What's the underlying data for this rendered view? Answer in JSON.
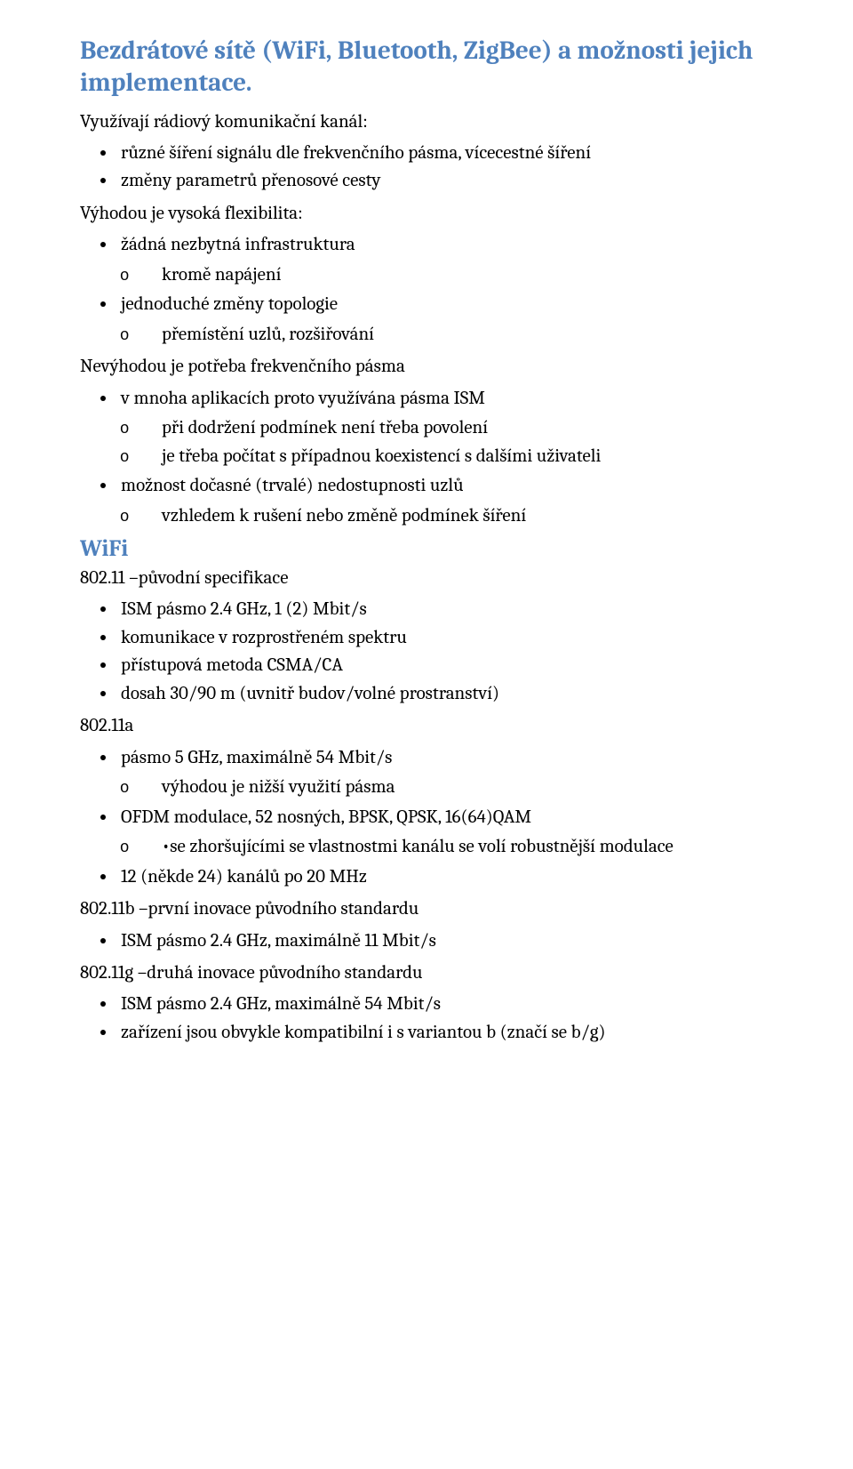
{
  "title": "Bezdrátové sítě (WiFi, Bluetooth, ZigBee) a možnosti jejich implementace.",
  "intro": "Využívají rádiový komunikační kanál:",
  "intro_list": [
    "různé šíření signálu dle frekvenčního pásma, vícecestné šíření",
    "změny parametrů přenosové cesty"
  ],
  "adv_heading": "Výhodou je vysoká flexibilita:",
  "adv_list": [
    {
      "text": "žádná nezbytná infrastruktura",
      "sub": [
        "kromě napájení"
      ]
    },
    {
      "text": "jednoduché změny topologie",
      "sub": [
        "přemístění uzlů, rozšiřování"
      ]
    }
  ],
  "disadv_heading": "Nevýhodou je potřeba frekvenčního pásma",
  "disadv_list": [
    {
      "text": "v mnoha aplikacích proto využívána pásma ISM",
      "sub": [
        "při dodržení podmínek není třeba povolení",
        "je třeba počítat s případnou koexistencí s dalšími uživateli"
      ]
    },
    {
      "text": "možnost dočasné (trvalé) nedostupnosti uzlů",
      "sub": [
        "vzhledem k rušení nebo změně podmínek šíření"
      ]
    }
  ],
  "wifi_heading": "WiFi",
  "wifi_orig": "802.11 –původní specifikace",
  "wifi_orig_list": [
    "ISM pásmo 2.4 GHz, 1 (2) Mbit/s",
    "komunikace v rozprostřeném spektru",
    "přístupová metoda CSMA/CA",
    "dosah 30/90 m (uvnitř budov/volné prostranství)"
  ],
  "wifi_a": "802.11a",
  "wifi_a_list": [
    {
      "text": "pásmo 5 GHz, maximálně 54 Mbit/s",
      "sub": [
        "výhodou je nižší využití pásma"
      ]
    },
    {
      "text": "OFDM modulace, 52 nosných, BPSK, QPSK, 16(64)QAM",
      "sub": [
        "•se zhoršujícími se vlastnostmi kanálu se volí robustnější modulace"
      ]
    },
    {
      "text": "12 (někde 24) kanálů po 20 MHz"
    }
  ],
  "wifi_b": "802.11b –první inovace původního standardu",
  "wifi_b_list": [
    "ISM pásmo 2.4 GHz, maximálně 11 Mbit/s"
  ],
  "wifi_g": "802.11g –druhá inovace původního standardu",
  "wifi_g_list": [
    "ISM pásmo 2.4 GHz, maximálně 54 Mbit/s",
    "zařízení jsou obvykle kompatibilní i s variantou b (značí se b/g)"
  ]
}
